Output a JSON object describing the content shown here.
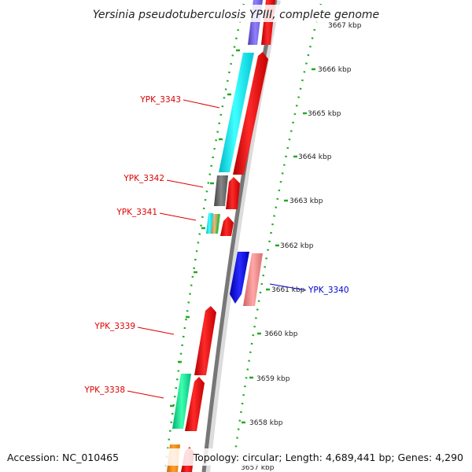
{
  "title": "Yersinia pseudotuberculosis YPIII, complete genome",
  "accession_text": "Accession: NC_010465",
  "topology_text": "Topology: circular; Length: 4,689,441 bp; Genes: 4,290",
  "colors": {
    "backbone_dark": "#777777",
    "backbone_light": "#dcdcdc",
    "tick": "#22aa22",
    "label_forward": "#dd0000",
    "label_reverse": "#0000cc"
  },
  "scale": {
    "unit": "kbp",
    "ticks": [
      "3657 kbp",
      "3658 kbp",
      "3659 kbp",
      "3660 kbp",
      "3661 kbp",
      "3662 kbp",
      "3663 kbp",
      "3664 kbp",
      "3665 kbp",
      "3666 kbp",
      "3667 kbp"
    ]
  },
  "gene_labels": [
    {
      "text": "YPK_3343",
      "strand": "forward"
    },
    {
      "text": "YPK_3342",
      "strand": "forward"
    },
    {
      "text": "YPK_3341",
      "strand": "forward"
    },
    {
      "text": "YPK_3340",
      "strand": "reverse"
    },
    {
      "text": "YPK_3339",
      "strand": "forward"
    },
    {
      "text": "YPK_3338",
      "strand": "forward"
    }
  ]
}
